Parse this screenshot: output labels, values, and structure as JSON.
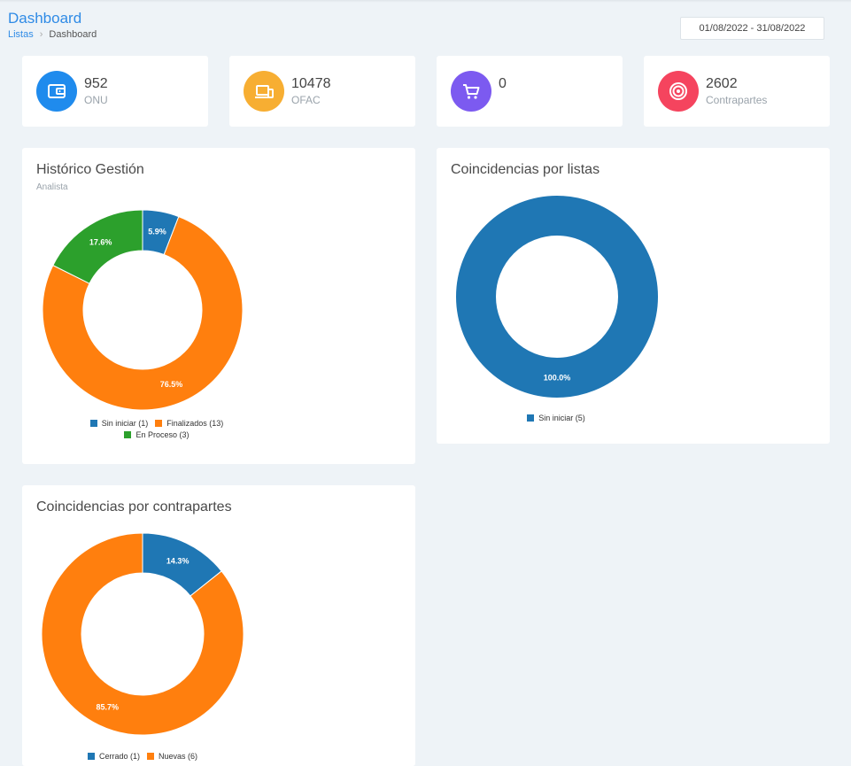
{
  "header": {
    "title": "Dashboard",
    "breadcrumb": {
      "link": "Listas",
      "current": "Dashboard"
    },
    "date_range": "01/08/2022 - 31/08/2022"
  },
  "stats": [
    {
      "value": "952",
      "label": "ONU",
      "color": "#1f8bed",
      "icon": "wallet-icon"
    },
    {
      "value": "10478",
      "label": "OFAC",
      "color": "#f7ae32",
      "icon": "devices-icon"
    },
    {
      "value": "0",
      "label": "",
      "color": "#7c5af0",
      "icon": "cart-icon"
    },
    {
      "value": "2602",
      "label": "Contrapartes",
      "color": "#f5445e",
      "icon": "target-icon"
    }
  ],
  "panels": {
    "historico": {
      "title": "Histórico Gestión",
      "subtitle": "Analista"
    },
    "listas": {
      "title": "Coincidencias por listas"
    },
    "contrapartes": {
      "title": "Coincidencias por contrapartes"
    }
  },
  "chart_data": [
    {
      "type": "pie",
      "title": "Histórico Gestión",
      "subtitle": "Analista",
      "categories": [
        "Sin iniciar (1)",
        "Finalizados (13)",
        "En Proceso (3)"
      ],
      "values": [
        1,
        13,
        3
      ],
      "labels": [
        "5.9%",
        "76.5%",
        "17.6%"
      ],
      "colors": [
        "#1f77b4",
        "#ff7f0e",
        "#2ca02c"
      ],
      "legend": "bottom"
    },
    {
      "type": "pie",
      "title": "Coincidencias por listas",
      "categories": [
        "Sin iniciar (5)"
      ],
      "values": [
        5
      ],
      "labels": [
        "100.0%"
      ],
      "colors": [
        "#1f77b4"
      ],
      "legend": "bottom"
    },
    {
      "type": "pie",
      "title": "Coincidencias por contrapartes",
      "categories": [
        "Cerrado (1)",
        "Nuevas (6)"
      ],
      "values": [
        1,
        6
      ],
      "labels": [
        "14.3%",
        "85.7%"
      ],
      "colors": [
        "#1f77b4",
        "#ff7f0e"
      ],
      "legend": "bottom"
    }
  ]
}
